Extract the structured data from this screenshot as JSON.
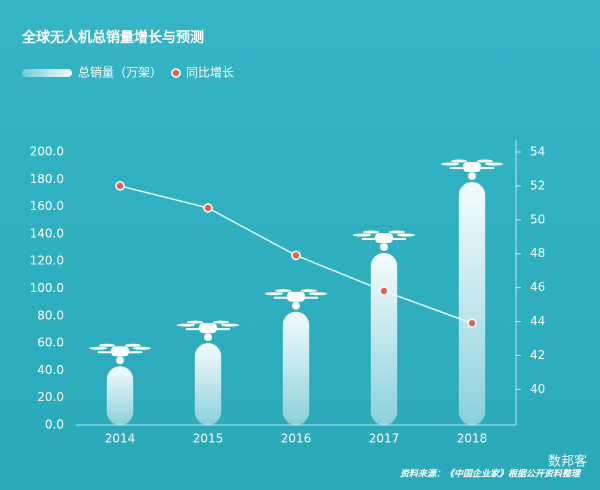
{
  "chart_data": {
    "type": "bar",
    "title": "全球无人机总销量增长与预测",
    "categories": [
      "2014",
      "2015",
      "2016",
      "2017",
      "2018"
    ],
    "series": [
      {
        "name": "总销量（万架）",
        "color": "#ffffff",
        "values": [
          43,
          60,
          83,
          126,
          178
        ]
      },
      {
        "name": "同比增长",
        "type": "line",
        "axis": "y2",
        "color": "#e8604c",
        "values": [
          52,
          50.7,
          47.9,
          45.8,
          43.9
        ]
      }
    ],
    "ylim": [
      0,
      200
    ],
    "yticks": [
      {
        "value": 0,
        "label": "0.0"
      },
      {
        "value": 20,
        "label": "20.0"
      },
      {
        "value": 40,
        "label": "40.0"
      },
      {
        "value": 60,
        "label": "60.0"
      },
      {
        "value": 80,
        "label": "80.0"
      },
      {
        "value": 100,
        "label": "100.0"
      },
      {
        "value": 120,
        "label": "120.0"
      },
      {
        "value": 140,
        "label": "140.0"
      },
      {
        "value": 160,
        "label": "160.0"
      },
      {
        "value": 180,
        "label": "180.0"
      },
      {
        "value": 200,
        "label": "200.0"
      }
    ],
    "y2lim": [
      37.9,
      54
    ],
    "y2ticks": [
      40,
      42,
      44,
      46,
      48,
      50,
      52,
      54
    ],
    "source": "资料来源：《中国企业家》根据公开资料整理",
    "watermark": "数邦客"
  }
}
